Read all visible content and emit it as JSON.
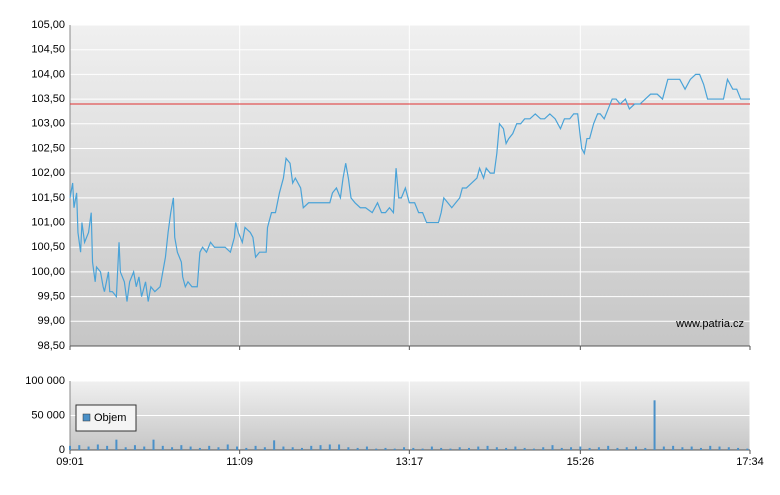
{
  "chart_data": [
    {
      "type": "line",
      "xlim": [
        541,
        1054
      ],
      "ylim": [
        98.5,
        105
      ],
      "yticks": [
        {
          "value": 98.5,
          "label": "98,50"
        },
        {
          "value": 99,
          "label": "99,00"
        },
        {
          "value": 99.5,
          "label": "99,50"
        },
        {
          "value": 100,
          "label": "100,00"
        },
        {
          "value": 100.5,
          "label": "100,50"
        },
        {
          "value": 101,
          "label": "101,00"
        },
        {
          "value": 101.5,
          "label": "101,50"
        },
        {
          "value": 102,
          "label": "102,00"
        },
        {
          "value": 102.5,
          "label": "102,50"
        },
        {
          "value": 103,
          "label": "103,00"
        },
        {
          "value": 103.5,
          "label": "103,50"
        },
        {
          "value": 104,
          "label": "104,00"
        },
        {
          "value": 104.5,
          "label": "104,50"
        },
        {
          "value": 105,
          "label": "105,00"
        }
      ],
      "grid": true,
      "reference_line": {
        "value": 103.4,
        "color": "#e03030"
      },
      "watermark": "www.patria.cz",
      "x": [
        541,
        543,
        544,
        546,
        547,
        549,
        550,
        552,
        555,
        557,
        558,
        560,
        561,
        564,
        566,
        567,
        570,
        571,
        573,
        576,
        578,
        579,
        582,
        584,
        586,
        589,
        591,
        593,
        595,
        598,
        600,
        602,
        605,
        609,
        613,
        615,
        617,
        619,
        620,
        622,
        625,
        626,
        628,
        630,
        633,
        637,
        639,
        641,
        644,
        647,
        650,
        654,
        658,
        662,
        665,
        666,
        668,
        671,
        673,
        677,
        679,
        681,
        684,
        689,
        690,
        693,
        696,
        699,
        702,
        704,
        707,
        709,
        711,
        715,
        717,
        721,
        726,
        733,
        737,
        739,
        742,
        745,
        747,
        749,
        751,
        753,
        756,
        760,
        764,
        769,
        773,
        776,
        779,
        782,
        785,
        787,
        789,
        791,
        794,
        797,
        801,
        804,
        807,
        810,
        815,
        819,
        821,
        823,
        826,
        829,
        832,
        835,
        837,
        840,
        844,
        848,
        850,
        853,
        855,
        858,
        861,
        863,
        865,
        868,
        870,
        872,
        875,
        878,
        881,
        884,
        888,
        892,
        896,
        899,
        903,
        907,
        911,
        914,
        918,
        921,
        924,
        927,
        929,
        931,
        933,
        936,
        939,
        941,
        944,
        947,
        950,
        953,
        956,
        960,
        963,
        967,
        971,
        975,
        979,
        984,
        988,
        992,
        996,
        1001,
        1005,
        1009,
        1013,
        1016,
        1019,
        1022,
        1025,
        1030,
        1034,
        1037,
        1041,
        1044,
        1047,
        1050,
        1054
      ],
      "series": [
        {
          "color": "#4aa3d8",
          "values": [
            101.5,
            101.8,
            101.3,
            101.6,
            100.8,
            100.4,
            101.0,
            100.6,
            100.8,
            101.2,
            100.2,
            99.8,
            100.1,
            100.0,
            99.7,
            99.6,
            100.0,
            99.6,
            99.6,
            99.5,
            100.6,
            100.0,
            99.8,
            99.4,
            99.8,
            100.0,
            99.7,
            99.9,
            99.5,
            99.8,
            99.4,
            99.7,
            99.6,
            99.7,
            100.3,
            100.8,
            101.2,
            101.5,
            100.7,
            100.4,
            100.2,
            99.9,
            99.7,
            99.8,
            99.7,
            99.7,
            100.4,
            100.5,
            100.4,
            100.6,
            100.5,
            100.5,
            100.5,
            100.4,
            100.7,
            101.0,
            100.8,
            100.6,
            100.9,
            100.8,
            100.7,
            100.3,
            100.4,
            100.4,
            100.9,
            101.2,
            101.2,
            101.6,
            101.9,
            102.3,
            102.2,
            101.8,
            101.9,
            101.7,
            101.3,
            101.4,
            101.4,
            101.4,
            101.4,
            101.6,
            101.7,
            101.5,
            101.9,
            102.2,
            101.9,
            101.5,
            101.4,
            101.3,
            101.3,
            101.2,
            101.4,
            101.2,
            101.2,
            101.3,
            101.2,
            102.1,
            101.5,
            101.5,
            101.7,
            101.4,
            101.4,
            101.2,
            101.2,
            101.0,
            101.0,
            101.0,
            101.2,
            101.5,
            101.4,
            101.3,
            101.4,
            101.5,
            101.7,
            101.7,
            101.8,
            101.9,
            102.1,
            101.9,
            102.1,
            102.0,
            102.0,
            102.4,
            103.0,
            102.9,
            102.6,
            102.7,
            102.8,
            103.0,
            103.0,
            103.1,
            103.1,
            103.2,
            103.1,
            103.1,
            103.2,
            103.1,
            102.9,
            103.1,
            103.1,
            103.2,
            103.2,
            102.5,
            102.4,
            102.7,
            102.7,
            103.0,
            103.2,
            103.2,
            103.1,
            103.3,
            103.5,
            103.5,
            103.4,
            103.5,
            103.3,
            103.4,
            103.4,
            103.5,
            103.6,
            103.6,
            103.5,
            103.9,
            103.9,
            103.9,
            103.7,
            103.9,
            104.0,
            104.0,
            103.8,
            103.5,
            103.5,
            103.5,
            103.5,
            103.9,
            103.7,
            103.7,
            103.5,
            103.5,
            103.5
          ]
        }
      ]
    },
    {
      "type": "bar",
      "xlim": [
        541,
        1054
      ],
      "xticks": [
        {
          "value": 541,
          "label": "09:01"
        },
        {
          "value": 669,
          "label": "11:09"
        },
        {
          "value": 797,
          "label": "13:17"
        },
        {
          "value": 926,
          "label": "15:26"
        },
        {
          "value": 1054,
          "label": "17:34"
        }
      ],
      "ylim": [
        0,
        100000
      ],
      "yticks": [
        0,
        {
          "value": 50000,
          "label": "50 000"
        },
        {
          "value": 100000,
          "label": "100 000"
        }
      ],
      "grid": true,
      "legend": "bottom-left",
      "x": [
        541,
        548,
        555,
        562,
        569,
        576,
        583,
        590,
        597,
        604,
        611,
        618,
        625,
        632,
        639,
        646,
        653,
        660,
        667,
        674,
        681,
        688,
        695,
        702,
        709,
        716,
        723,
        730,
        737,
        744,
        751,
        758,
        765,
        772,
        779,
        786,
        793,
        800,
        807,
        814,
        821,
        828,
        835,
        842,
        849,
        856,
        863,
        870,
        877,
        884,
        891,
        898,
        905,
        912,
        919,
        926,
        933,
        940,
        947,
        954,
        961,
        968,
        975,
        982,
        989,
        996,
        1003,
        1010,
        1017,
        1024,
        1031,
        1038,
        1045,
        1052
      ],
      "series": [
        {
          "name": "Objem",
          "color": "#4a90c8",
          "values": [
            6000,
            7000,
            5000,
            8000,
            6000,
            15000,
            4000,
            7000,
            5000,
            15000,
            6000,
            4000,
            7000,
            5000,
            3000,
            6000,
            4000,
            8000,
            5000,
            3000,
            6000,
            4000,
            14000,
            5000,
            4000,
            3000,
            6000,
            7000,
            8000,
            8000,
            4000,
            3000,
            5000,
            2000,
            3000,
            2000,
            4000,
            3000,
            2000,
            5000,
            3000,
            2000,
            4000,
            3000,
            5000,
            6000,
            4000,
            3000,
            5000,
            3000,
            2000,
            4000,
            7000,
            3000,
            4000,
            5000,
            3000,
            4000,
            6000,
            3000,
            4000,
            5000,
            3000,
            72000,
            5000,
            6000,
            4000,
            5000,
            3000,
            6000,
            5000,
            4000,
            3000,
            2000
          ]
        }
      ]
    }
  ]
}
